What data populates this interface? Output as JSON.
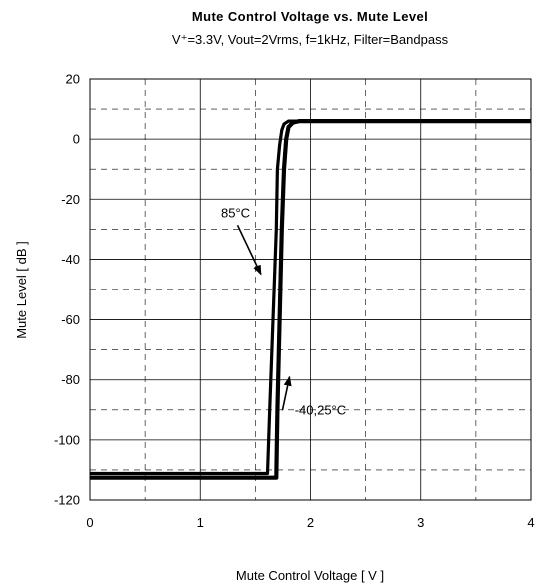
{
  "chart_data": {
    "type": "line",
    "title": "Mute Control Voltage vs. Mute Level",
    "subtitle": "V⁺=3.3V, Vout=2Vrms, f=1kHz, Filter=Bandpass",
    "xlabel": "Mute Control Voltage [ V ]",
    "ylabel": "Mute Level [ dB ]",
    "xlim": [
      0,
      4
    ],
    "ylim": [
      -120,
      20
    ],
    "x_ticks": [
      0,
      1,
      2,
      3,
      4
    ],
    "y_ticks": [
      20,
      0,
      -20,
      -40,
      -60,
      -80,
      -100,
      -120
    ],
    "x_minor_step": 0.5,
    "y_minor_step": 10,
    "grid": true,
    "series": [
      {
        "name": "85°C",
        "x": [
          0,
          1.61,
          1.63,
          1.66,
          1.69,
          1.7,
          1.72,
          1.74,
          1.76,
          1.8,
          1.86,
          4.0
        ],
        "y": [
          -111.2,
          -111.2,
          -90,
          -60,
          -30,
          -10,
          -2,
          3,
          5,
          6,
          6,
          6
        ]
      },
      {
        "name": "-40,25°C",
        "x": [
          0,
          1.69,
          1.7,
          1.72,
          1.74,
          1.76,
          1.78,
          1.8,
          1.84,
          1.9,
          4.0
        ],
        "y": [
          -112.6,
          -112.6,
          -90,
          -60,
          -30,
          -10,
          0,
          4,
          5.5,
          6,
          6
        ]
      }
    ],
    "annotations": [
      {
        "text": "85°C",
        "x": 1.32,
        "y": -26,
        "arrow_to": [
          1.55,
          -45
        ]
      },
      {
        "text": "-40,25°C",
        "x": 2.09,
        "y": -91.5,
        "arrow_to": [
          1.81,
          -79
        ]
      }
    ]
  }
}
